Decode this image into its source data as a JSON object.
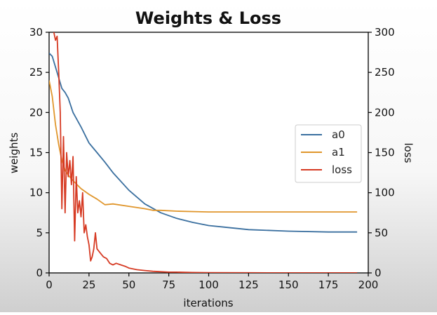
{
  "chart_data": {
    "type": "line",
    "title": "Weights & Loss",
    "xlabel": "iterations",
    "ylabel_left": "weights",
    "ylabel_right": "loss",
    "xlim": [
      0,
      200
    ],
    "ylim_left": [
      0,
      30
    ],
    "ylim_right": [
      0,
      300
    ],
    "x_ticks": [
      0,
      25,
      50,
      75,
      100,
      125,
      150,
      175,
      200
    ],
    "y_ticks_left": [
      0,
      5,
      10,
      15,
      20,
      25,
      30
    ],
    "y_ticks_right": [
      0,
      50,
      100,
      150,
      200,
      250,
      300
    ],
    "grid": false,
    "legend_position": "center-right",
    "series": [
      {
        "name": "a0",
        "axis": "left",
        "color": "#3a6f9f",
        "x": [
          0,
          2,
          5,
          8,
          10,
          12,
          15,
          20,
          25,
          30,
          35,
          40,
          50,
          60,
          70,
          80,
          90,
          100,
          110,
          125,
          150,
          175,
          193
        ],
        "y": [
          27.4,
          27.0,
          25.0,
          23.0,
          22.5,
          21.8,
          20.0,
          18.2,
          16.2,
          15.0,
          13.8,
          12.5,
          10.3,
          8.6,
          7.5,
          6.8,
          6.3,
          5.9,
          5.7,
          5.4,
          5.2,
          5.1,
          5.1
        ]
      },
      {
        "name": "a1",
        "axis": "left",
        "color": "#e0962c",
        "x": [
          0,
          2,
          4,
          6,
          8,
          10,
          12,
          15,
          20,
          25,
          30,
          35,
          40,
          50,
          60,
          65,
          70,
          80,
          100,
          125,
          150,
          175,
          193
        ],
        "y": [
          24.0,
          22.0,
          18.5,
          16.0,
          14.0,
          12.8,
          12.2,
          11.5,
          10.5,
          9.8,
          9.2,
          8.5,
          8.6,
          8.3,
          8.0,
          7.8,
          7.8,
          7.7,
          7.6,
          7.6,
          7.6,
          7.6,
          7.6
        ]
      },
      {
        "name": "loss",
        "axis": "right",
        "color": "#d63a23",
        "x": [
          3,
          4,
          5,
          6,
          7,
          8,
          9,
          10,
          11,
          12,
          13,
          14,
          15,
          16,
          17,
          18,
          19,
          20,
          21,
          22,
          23,
          24,
          25,
          26,
          27,
          28,
          29,
          30,
          32,
          34,
          36,
          38,
          40,
          42,
          45,
          48,
          50,
          55,
          60,
          65,
          70,
          75,
          80,
          90,
          100,
          125,
          150,
          175,
          193
        ],
        "y": [
          300,
          290,
          295,
          250,
          200,
          80,
          170,
          75,
          150,
          120,
          140,
          110,
          145,
          40,
          120,
          75,
          90,
          70,
          100,
          50,
          60,
          45,
          35,
          15,
          20,
          30,
          50,
          30,
          25,
          20,
          18,
          12,
          10,
          12,
          10,
          8,
          6,
          4,
          3,
          2,
          1.5,
          1,
          1,
          0.5,
          0.3,
          0.2,
          0.1,
          0.1,
          0.1
        ]
      }
    ]
  }
}
